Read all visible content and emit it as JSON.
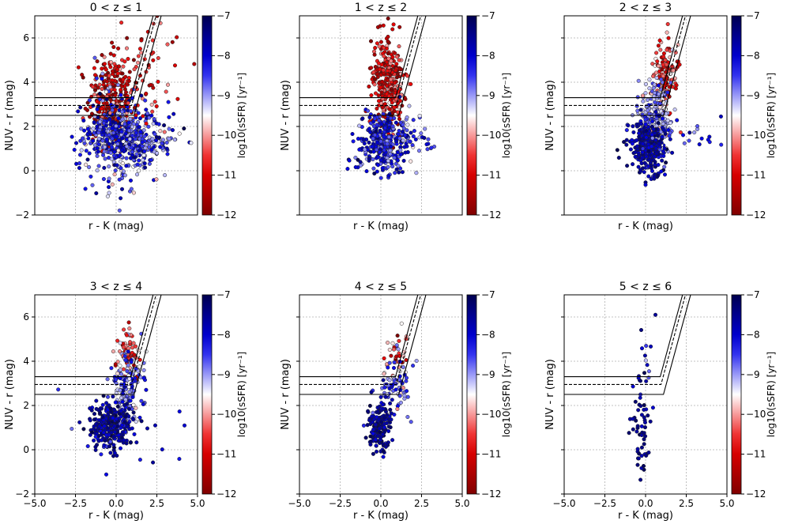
{
  "figure": {
    "columns": 3,
    "rows": 2
  },
  "chart_data": [
    {
      "type": "scatter",
      "title": "0 < z ≤ 1",
      "xlabel": "r - K (mag)",
      "ylabel": "NUV - r (mag)",
      "colorbar_label": "log10(sSFR) [yr⁻¹]",
      "xlim": [
        -5,
        5
      ],
      "ylim": [
        -2,
        7
      ],
      "clim": [
        -12,
        -7
      ],
      "xticks": [],
      "yticks": [
        -2,
        0,
        2,
        4,
        6
      ],
      "xtick_labels": [],
      "ytick_labels": [
        "−2",
        "0",
        "2",
        "4",
        "6"
      ],
      "cbar_ticks": [
        -7,
        -8,
        -9,
        -10,
        -11,
        -12
      ],
      "cbar_tick_labels": [
        "−7",
        "−8",
        "−9",
        "−10",
        "−11",
        "−12"
      ],
      "selection_lines": [
        {
          "style": "solid",
          "y_low": 3.3,
          "x_corner": 0.9,
          "slope": 2.7
        },
        {
          "style": "dashed",
          "y_low": 2.95,
          "x_corner": 0.95,
          "slope": 2.7
        },
        {
          "style": "solid",
          "y_low": 2.5,
          "x_corner": 1.1,
          "slope": 2.7
        }
      ],
      "clusters": [
        {
          "n": 300,
          "x": [
            -0.3,
            0.7
          ],
          "y": [
            3.2,
            1.0
          ],
          "c": -11.2,
          "cs": 0.6
        },
        {
          "n": 320,
          "x": [
            0.2,
            1.0
          ],
          "y": [
            1.5,
            1.2
          ],
          "c": -8.6,
          "cs": 0.6
        },
        {
          "n": 200,
          "x": [
            0.0,
            1.2
          ],
          "y": [
            1.5,
            0.5
          ],
          "c": -8.3,
          "cs": 0.4
        },
        {
          "n": 100,
          "x": [
            2.2,
            1.0
          ],
          "y": [
            1.4,
            0.6
          ],
          "c": -8.6,
          "cs": 0.5
        },
        {
          "n": 60,
          "x": [
            1.8,
            1.2
          ],
          "y": [
            4.5,
            1.2
          ],
          "c": -10.8,
          "cs": 0.6
        }
      ]
    },
    {
      "type": "scatter",
      "title": "1 < z ≤ 2",
      "xlabel": "r - K (mag)",
      "ylabel": "NUV - r (mag)",
      "colorbar_label": "log10(sSFR) [yr⁻¹]",
      "xlim": [
        -5,
        5
      ],
      "ylim": [
        -2,
        7
      ],
      "clim": [
        -12,
        -7
      ],
      "xticks": [],
      "yticks": [
        -2,
        0,
        2,
        4,
        6
      ],
      "xtick_labels": [],
      "ytick_labels": [],
      "cbar_ticks": [
        -7,
        -8,
        -9,
        -10,
        -11,
        -12
      ],
      "cbar_tick_labels": [
        "−7",
        "−8",
        "−9",
        "−10",
        "−11",
        "−12"
      ],
      "selection_lines": [
        {
          "style": "solid",
          "y_low": 3.3,
          "x_corner": 0.9,
          "slope": 2.7
        },
        {
          "style": "dashed",
          "y_low": 2.95,
          "x_corner": 0.95,
          "slope": 2.7
        },
        {
          "style": "solid",
          "y_low": 2.5,
          "x_corner": 1.1,
          "slope": 2.7
        }
      ],
      "clusters": [
        {
          "n": 300,
          "x": [
            0.4,
            0.5
          ],
          "y": [
            4.0,
            1.0
          ],
          "c": -11.0,
          "cs": 0.6
        },
        {
          "n": 300,
          "x": [
            0.1,
            0.8
          ],
          "y": [
            1.3,
            0.7
          ],
          "c": -8.3,
          "cs": 0.4
        },
        {
          "n": 60,
          "x": [
            1.8,
            1.0
          ],
          "y": [
            1.4,
            0.6
          ],
          "c": -8.5,
          "cs": 0.5
        }
      ]
    },
    {
      "type": "scatter",
      "title": "2 < z ≤ 3",
      "xlabel": "r - K (mag)",
      "ylabel": "NUV - r (mag)",
      "colorbar_label": "log10(sSFR) [yr⁻¹]",
      "xlim": [
        -5,
        5
      ],
      "ylim": [
        -2,
        7
      ],
      "clim": [
        -12,
        -7
      ],
      "xticks": [],
      "yticks": [
        -2,
        0,
        2,
        4,
        6
      ],
      "xtick_labels": [],
      "ytick_labels": [],
      "cbar_ticks": [
        -7,
        -8,
        -9,
        -10,
        -11,
        -12
      ],
      "cbar_tick_labels": [
        "−7",
        "−8",
        "−9",
        "−10",
        "−11",
        "−12"
      ],
      "selection_lines": [
        {
          "style": "solid",
          "y_low": 3.3,
          "x_corner": 0.9,
          "slope": 2.7
        },
        {
          "style": "dashed",
          "y_low": 2.95,
          "x_corner": 0.95,
          "slope": 2.7
        },
        {
          "style": "solid",
          "y_low": 2.5,
          "x_corner": 1.1,
          "slope": 2.7
        }
      ],
      "clusters": [
        {
          "n": 150,
          "x": [
            1.2,
            0.4
          ],
          "y": [
            4.2,
            0.8
          ],
          "c": -10.6,
          "cs": 0.6
        },
        {
          "n": 220,
          "x": [
            0.6,
            0.5
          ],
          "y": [
            2.4,
            0.7
          ],
          "c": -9.0,
          "cs": 0.4
        },
        {
          "n": 300,
          "x": [
            0.2,
            0.55
          ],
          "y": [
            1.1,
            0.55
          ],
          "c": -7.8,
          "cs": 0.35
        },
        {
          "n": 15,
          "x": [
            3.5,
            0.8
          ],
          "y": [
            1.6,
            0.5
          ],
          "c": -8.3,
          "cs": 0.4
        }
      ]
    },
    {
      "type": "scatter",
      "title": "3 < z ≤ 4",
      "xlabel": "r - K (mag)",
      "ylabel": "NUV - r (mag)",
      "colorbar_label": "log10(sSFR) [yr⁻¹]",
      "xlim": [
        -5,
        5
      ],
      "ylim": [
        -2,
        7
      ],
      "clim": [
        -12,
        -7
      ],
      "xticks": [
        -5,
        -2.5,
        0,
        2.5,
        5
      ],
      "yticks": [
        -2,
        0,
        2,
        4,
        6
      ],
      "xtick_labels": [
        "−5.0",
        "−2.5",
        "0.0",
        "2.5",
        "5.0"
      ],
      "ytick_labels": [
        "−2",
        "0",
        "2",
        "4",
        "6"
      ],
      "cbar_ticks": [
        -7,
        -8,
        -9,
        -10,
        -11,
        -12
      ],
      "cbar_tick_labels": [
        "−7",
        "−8",
        "−9",
        "−10",
        "−11",
        "−12"
      ],
      "selection_lines": [
        {
          "style": "solid",
          "y_low": 3.3,
          "x_corner": 0.9,
          "slope": 2.7
        },
        {
          "style": "dashed",
          "y_low": 2.95,
          "x_corner": 0.95,
          "slope": 2.7
        },
        {
          "style": "solid",
          "y_low": 2.5,
          "x_corner": 1.1,
          "slope": 2.7
        }
      ],
      "clusters": [
        {
          "n": 80,
          "x": [
            0.8,
            0.4
          ],
          "y": [
            4.3,
            0.6
          ],
          "c": -10.5,
          "cs": 0.7
        },
        {
          "n": 140,
          "x": [
            0.8,
            0.5
          ],
          "y": [
            2.8,
            0.8
          ],
          "c": -8.8,
          "cs": 0.5
        },
        {
          "n": 280,
          "x": [
            -0.4,
            0.6
          ],
          "y": [
            1.1,
            0.55
          ],
          "c": -7.7,
          "cs": 0.35
        },
        {
          "n": 25,
          "x": [
            1.0,
            1.8
          ],
          "y": [
            0.8,
            1.2
          ],
          "c": -8.0,
          "cs": 0.4
        }
      ]
    },
    {
      "type": "scatter",
      "title": "4 < z ≤ 5",
      "xlabel": "r - K (mag)",
      "ylabel": "NUV - r (mag)",
      "colorbar_label": "log10(sSFR) [yr⁻¹]",
      "xlim": [
        -5,
        5
      ],
      "ylim": [
        -2,
        7
      ],
      "clim": [
        -12,
        -7
      ],
      "xticks": [
        -5,
        -2.5,
        0,
        2.5,
        5
      ],
      "yticks": [
        -2,
        0,
        2,
        4,
        6
      ],
      "xtick_labels": [
        "−5.0",
        "−2.5",
        "0.0",
        "2.5",
        "5.0"
      ],
      "ytick_labels": [],
      "cbar_ticks": [
        -7,
        -8,
        -9,
        -10,
        -11,
        -12
      ],
      "cbar_tick_labels": [
        "−7",
        "−8",
        "−9",
        "−10",
        "−11",
        "−12"
      ],
      "selection_lines": [
        {
          "style": "solid",
          "y_low": 3.3,
          "x_corner": 0.9,
          "slope": 2.7
        },
        {
          "style": "dashed",
          "y_low": 2.95,
          "x_corner": 0.95,
          "slope": 2.7
        },
        {
          "style": "solid",
          "y_low": 2.5,
          "x_corner": 1.1,
          "slope": 2.7
        }
      ],
      "clusters": [
        {
          "n": 40,
          "x": [
            1.0,
            0.4
          ],
          "y": [
            4.2,
            0.6
          ],
          "c": -10.2,
          "cs": 0.7
        },
        {
          "n": 70,
          "x": [
            0.9,
            0.5
          ],
          "y": [
            2.9,
            0.6
          ],
          "c": -8.6,
          "cs": 0.5
        },
        {
          "n": 150,
          "x": [
            -0.1,
            0.35
          ],
          "y": [
            1.0,
            0.65
          ],
          "c": -7.6,
          "cs": 0.3
        }
      ]
    },
    {
      "type": "scatter",
      "title": "5 < z ≤ 6",
      "xlabel": "r - K (mag)",
      "ylabel": "NUV - r (mag)",
      "colorbar_label": "log10(sSFR) [yr⁻¹]",
      "xlim": [
        -5,
        5
      ],
      "ylim": [
        -2,
        7
      ],
      "clim": [
        -12,
        -7
      ],
      "xticks": [
        -5,
        -2.5,
        0,
        2.5,
        5
      ],
      "yticks": [
        -2,
        0,
        2,
        4,
        6
      ],
      "xtick_labels": [
        "−5.0",
        "−2.5",
        "0.0",
        "2.5",
        "5.0"
      ],
      "ytick_labels": [],
      "cbar_ticks": [
        -7,
        -8,
        -9,
        -10,
        -11,
        -12
      ],
      "cbar_tick_labels": [
        "−7",
        "−8",
        "−9",
        "−10",
        "−11",
        "−12"
      ],
      "selection_lines": [
        {
          "style": "solid",
          "y_low": 3.3,
          "x_corner": 0.9,
          "slope": 2.7
        },
        {
          "style": "dashed",
          "y_low": 2.95,
          "x_corner": 0.95,
          "slope": 2.7
        },
        {
          "style": "solid",
          "y_low": 2.5,
          "x_corner": 1.1,
          "slope": 2.7
        }
      ],
      "clusters": [
        {
          "n": 60,
          "x": [
            -0.3,
            0.3
          ],
          "y": [
            0.8,
            1.1
          ],
          "c": -7.5,
          "cs": 0.3
        },
        {
          "n": 10,
          "x": [
            0.1,
            0.3
          ],
          "y": [
            3.0,
            1.2
          ],
          "c": -8.0,
          "cs": 0.4
        }
      ]
    }
  ]
}
